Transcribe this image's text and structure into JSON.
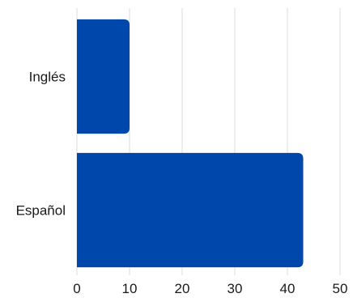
{
  "chart_data": {
    "type": "bar",
    "orientation": "horizontal",
    "categories": [
      "Inglés",
      "Español"
    ],
    "values": [
      10,
      43
    ],
    "xlim": [
      0,
      50
    ],
    "xticks": [
      0,
      10,
      20,
      30,
      40,
      50
    ],
    "title": "",
    "xlabel": "",
    "ylabel": "",
    "grid": "vertical",
    "legend": "none",
    "colors": {
      "bar": "#0047AB",
      "grid": "#dddddd",
      "text": "#1a1a1a"
    }
  }
}
